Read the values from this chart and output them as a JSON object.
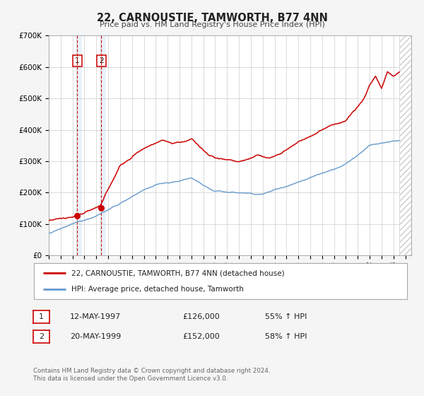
{
  "title": "22, CARNOUSTIE, TAMWORTH, B77 4NN",
  "subtitle": "Price paid vs. HM Land Registry's House Price Index (HPI)",
  "ylim": [
    0,
    700000
  ],
  "xlim_start": 1995.0,
  "xlim_end": 2025.5,
  "sale1_date": 1997.36,
  "sale1_price": 126000,
  "sale2_date": 1999.38,
  "sale2_price": 152000,
  "line_color_house": "#cc0000",
  "line_color_hpi": "#6699cc",
  "vline_color": "#cc0000",
  "shade_color": "#aaccee",
  "legend_house": "22, CARNOUSTIE, TAMWORTH, B77 4NN (detached house)",
  "legend_hpi": "HPI: Average price, detached house, Tamworth",
  "table_row1_num": "1",
  "table_row1_date": "12-MAY-1997",
  "table_row1_price": "£126,000",
  "table_row1_hpi": "55% ↑ HPI",
  "table_row2_num": "2",
  "table_row2_date": "20-MAY-1999",
  "table_row2_price": "£152,000",
  "table_row2_hpi": "58% ↑ HPI",
  "footnote1": "Contains HM Land Registry data © Crown copyright and database right 2024.",
  "footnote2": "This data is licensed under the Open Government Licence v3.0.",
  "background_color": "#f5f5f5",
  "plot_bg_color": "#ffffff",
  "grid_color": "#cccccc",
  "hatch_start": 2024.5
}
